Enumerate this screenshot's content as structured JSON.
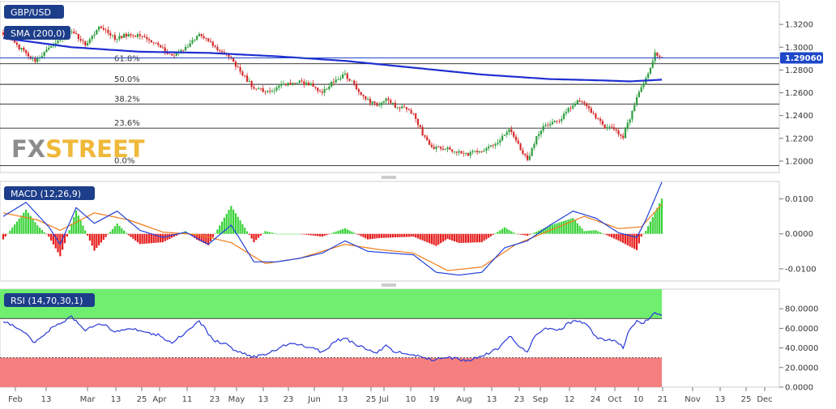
{
  "symbol": "GBP/USD",
  "watermark": {
    "left": "FX",
    "right": "STREET"
  },
  "colors": {
    "up": "#2e9e3e",
    "down": "#d42a2a",
    "sma": "#1f2fd0",
    "macd_line": "#2140d8",
    "signal_line": "#f07d18",
    "hist_up": "#3ad23a",
    "hist_down": "#e61e1e",
    "rsi_line": "#2a3ad6",
    "rsi_over": "#6fee6f",
    "rsi_under": "#f57f7f",
    "last_price_bg": "#1d47c8",
    "tag_bg": "#1d3e8a",
    "watermark_fx": "#8c8c8c",
    "watermark_street": "#f0b93a"
  },
  "price_pane": {
    "sma_label": "SMA (200,0)",
    "last_price": "1.29060",
    "ticks": [
      "1.3200",
      "1.3000",
      "1.2800",
      "1.2600",
      "1.2400",
      "1.2200",
      "1.2000"
    ],
    "fib_levels": [
      {
        "label": "61.8%",
        "price": 1.2855
      },
      {
        "label": "50.0%",
        "price": 1.2674
      },
      {
        "label": "38.2%",
        "price": 1.25
      },
      {
        "label": "23.6%",
        "price": 1.229
      },
      {
        "label": "0.0%",
        "price": 1.196
      }
    ]
  },
  "macd_pane": {
    "label": "MACD (12,26,9)",
    "ticks": [
      "0.0100",
      "0.0000",
      "-0.0100"
    ]
  },
  "rsi_pane": {
    "label": "RSI (14,70,30,1)",
    "ticks": [
      "80.0000",
      "60.0000",
      "40.0000",
      "20.0000",
      "0.0000"
    ]
  },
  "date_labels": [
    "Feb",
    "13",
    "Mar",
    "13",
    "25",
    "Apr",
    "11",
    "23",
    "May",
    "13",
    "23",
    "Jun",
    "13",
    "25",
    "Jul",
    "10",
    "19",
    "Aug",
    "13",
    "23",
    "Sep",
    "12",
    "24",
    "Oct",
    "10",
    "21",
    "Nov",
    "13",
    "25",
    "Dec"
  ],
  "chart_data": [
    {
      "type": "candlestick",
      "title": "GBP/USD",
      "ylim": [
        1.19,
        1.34
      ],
      "overlays": [
        "SMA (200,0)",
        "Fibonacci retracement"
      ],
      "last_value": 1.2906,
      "close_path": [
        [
          0,
          1.312
        ],
        [
          8,
          1.298
        ],
        [
          14,
          1.288
        ],
        [
          22,
          1.302
        ],
        [
          30,
          1.314
        ],
        [
          36,
          1.302
        ],
        [
          42,
          1.318
        ],
        [
          49,
          1.308
        ],
        [
          56,
          1.312
        ],
        [
          62,
          1.308
        ],
        [
          68,
          1.303
        ],
        [
          74,
          1.292
        ],
        [
          80,
          1.299
        ],
        [
          86,
          1.313
        ],
        [
          92,
          1.301
        ],
        [
          98,
          1.295
        ],
        [
          104,
          1.278
        ],
        [
          110,
          1.264
        ],
        [
          116,
          1.261
        ],
        [
          122,
          1.266
        ],
        [
          128,
          1.27
        ],
        [
          134,
          1.268
        ],
        [
          140,
          1.26
        ],
        [
          146,
          1.272
        ],
        [
          150,
          1.276
        ],
        [
          156,
          1.262
        ],
        [
          160,
          1.253
        ],
        [
          164,
          1.249
        ],
        [
          168,
          1.256
        ],
        [
          172,
          1.248
        ],
        [
          178,
          1.246
        ],
        [
          181,
          1.238
        ],
        [
          184,
          1.224
        ],
        [
          188,
          1.212
        ],
        [
          196,
          1.21
        ],
        [
          204,
          1.206
        ],
        [
          212,
          1.211
        ],
        [
          218,
          1.218
        ],
        [
          222,
          1.228
        ],
        [
          226,
          1.215
        ],
        [
          230,
          1.2
        ],
        [
          234,
          1.222
        ],
        [
          238,
          1.232
        ],
        [
          244,
          1.236
        ],
        [
          248,
          1.246
        ],
        [
          252,
          1.252
        ],
        [
          256,
          1.249
        ],
        [
          260,
          1.238
        ],
        [
          264,
          1.23
        ],
        [
          268,
          1.228
        ],
        [
          272,
          1.222
        ],
        [
          275,
          1.238
        ],
        [
          278,
          1.257
        ],
        [
          281,
          1.268
        ],
        [
          284,
          1.282
        ],
        [
          286,
          1.295
        ],
        [
          288,
          1.29
        ],
        [
          289,
          1.2906
        ]
      ],
      "sma_path": [
        [
          0,
          1.308
        ],
        [
          30,
          1.3
        ],
        [
          60,
          1.296
        ],
        [
          90,
          1.295
        ],
        [
          120,
          1.292
        ],
        [
          150,
          1.288
        ],
        [
          180,
          1.282
        ],
        [
          210,
          1.276
        ],
        [
          240,
          1.272
        ],
        [
          260,
          1.271
        ],
        [
          275,
          1.27
        ],
        [
          289,
          1.2715
        ]
      ]
    },
    {
      "type": "line",
      "title": "MACD (12,26,9)",
      "ylim": [
        -0.0135,
        0.015
      ],
      "series": [
        {
          "name": "MACD",
          "values": [
            [
              0,
              0.005
            ],
            [
              10,
              0.009
            ],
            [
              20,
              0.002
            ],
            [
              25,
              -0.003
            ],
            [
              32,
              0.0075
            ],
            [
              40,
              0.003
            ],
            [
              50,
              0.0065
            ],
            [
              60,
              0.001
            ],
            [
              70,
              -0.001
            ],
            [
              80,
              0.0005
            ],
            [
              90,
              -0.003
            ],
            [
              100,
              0.0025
            ],
            [
              110,
              -0.008
            ],
            [
              120,
              -0.008
            ],
            [
              130,
              -0.007
            ],
            [
              140,
              -0.0055
            ],
            [
              150,
              -0.002
            ],
            [
              160,
              -0.005
            ],
            [
              170,
              -0.0055
            ],
            [
              180,
              -0.006
            ],
            [
              190,
              -0.011
            ],
            [
              200,
              -0.0118
            ],
            [
              210,
              -0.011
            ],
            [
              220,
              -0.004
            ],
            [
              230,
              -0.002
            ],
            [
              240,
              0.0025
            ],
            [
              250,
              0.0065
            ],
            [
              260,
              0.0045
            ],
            [
              270,
              0.0003
            ],
            [
              278,
              -0.001
            ],
            [
              282,
              0.004
            ],
            [
              289,
              0.0148
            ]
          ]
        },
        {
          "name": "Signal",
          "values": [
            [
              0,
              0.006
            ],
            [
              15,
              0.004
            ],
            [
              25,
              0.001
            ],
            [
              40,
              0.006
            ],
            [
              55,
              0.004
            ],
            [
              70,
              0.0005
            ],
            [
              85,
              -0.0002
            ],
            [
              100,
              -0.0025
            ],
            [
              115,
              -0.0085
            ],
            [
              130,
              -0.007
            ],
            [
              150,
              -0.003
            ],
            [
              165,
              -0.0045
            ],
            [
              180,
              -0.0055
            ],
            [
              195,
              -0.0105
            ],
            [
              210,
              -0.0095
            ],
            [
              225,
              -0.003
            ],
            [
              240,
              0.001
            ],
            [
              255,
              0.005
            ],
            [
              270,
              0.0015
            ],
            [
              280,
              0.002
            ],
            [
              289,
              0.0085
            ]
          ]
        }
      ]
    },
    {
      "type": "line",
      "title": "RSI (14,70,30,1)",
      "ylim": [
        0,
        100
      ],
      "overbought": 70,
      "oversold": 30,
      "series": [
        {
          "name": "RSI",
          "values": [
            [
              0,
              68
            ],
            [
              8,
              58
            ],
            [
              14,
              45
            ],
            [
              22,
              62
            ],
            [
              30,
              72
            ],
            [
              36,
              58
            ],
            [
              42,
              66
            ],
            [
              49,
              57
            ],
            [
              56,
              60
            ],
            [
              62,
              57
            ],
            [
              68,
              53
            ],
            [
              74,
              46
            ],
            [
              80,
              56
            ],
            [
              86,
              68
            ],
            [
              92,
              48
            ],
            [
              98,
              43
            ],
            [
              104,
              35
            ],
            [
              110,
              31
            ],
            [
              116,
              33
            ],
            [
              122,
              42
            ],
            [
              128,
              45
            ],
            [
              134,
              41
            ],
            [
              140,
              36
            ],
            [
              146,
              47
            ],
            [
              150,
              50
            ],
            [
              156,
              42
            ],
            [
              160,
              38
            ],
            [
              164,
              35
            ],
            [
              168,
              42
            ],
            [
              172,
              36
            ],
            [
              178,
              34
            ],
            [
              184,
              30
            ],
            [
              188,
              28
            ],
            [
              196,
              30
            ],
            [
              204,
              27
            ],
            [
              212,
              34
            ],
            [
              218,
              40
            ],
            [
              222,
              53
            ],
            [
              226,
              43
            ],
            [
              230,
              36
            ],
            [
              234,
              55
            ],
            [
              238,
              60
            ],
            [
              244,
              58
            ],
            [
              248,
              65
            ],
            [
              252,
              68
            ],
            [
              256,
              64
            ],
            [
              260,
              52
            ],
            [
              264,
              47
            ],
            [
              268,
              48
            ],
            [
              272,
              41
            ],
            [
              275,
              60
            ],
            [
              278,
              67
            ],
            [
              281,
              65
            ],
            [
              284,
              72
            ],
            [
              286,
              76
            ],
            [
              288,
              73
            ],
            [
              289,
              73
            ]
          ]
        }
      ]
    }
  ]
}
